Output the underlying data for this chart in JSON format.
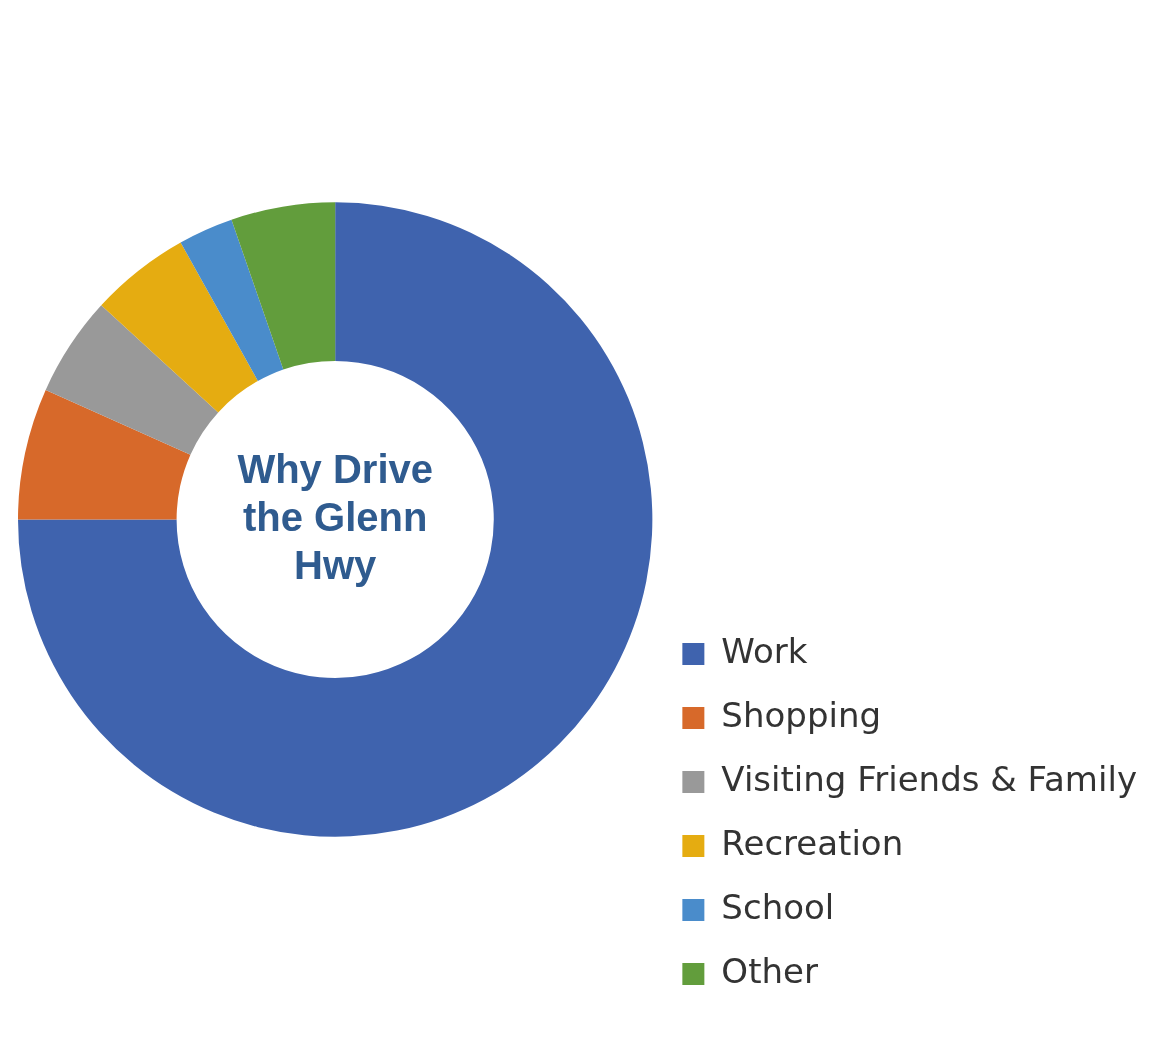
{
  "chart_data": {
    "type": "donut",
    "title": "Why Drive the Glenn Hwy",
    "categories": [
      "Work",
      "Shopping",
      "Visiting Friends & Family",
      "Recreation",
      "School",
      "Other"
    ],
    "values": [
      75,
      6.7,
      5.1,
      5.1,
      2.8,
      5.3
    ],
    "colors": [
      "#3f63ae",
      "#d7692a",
      "#999999",
      "#e5ac11",
      "#4a8ccb",
      "#629d3c"
    ],
    "legend": "bottom right"
  }
}
